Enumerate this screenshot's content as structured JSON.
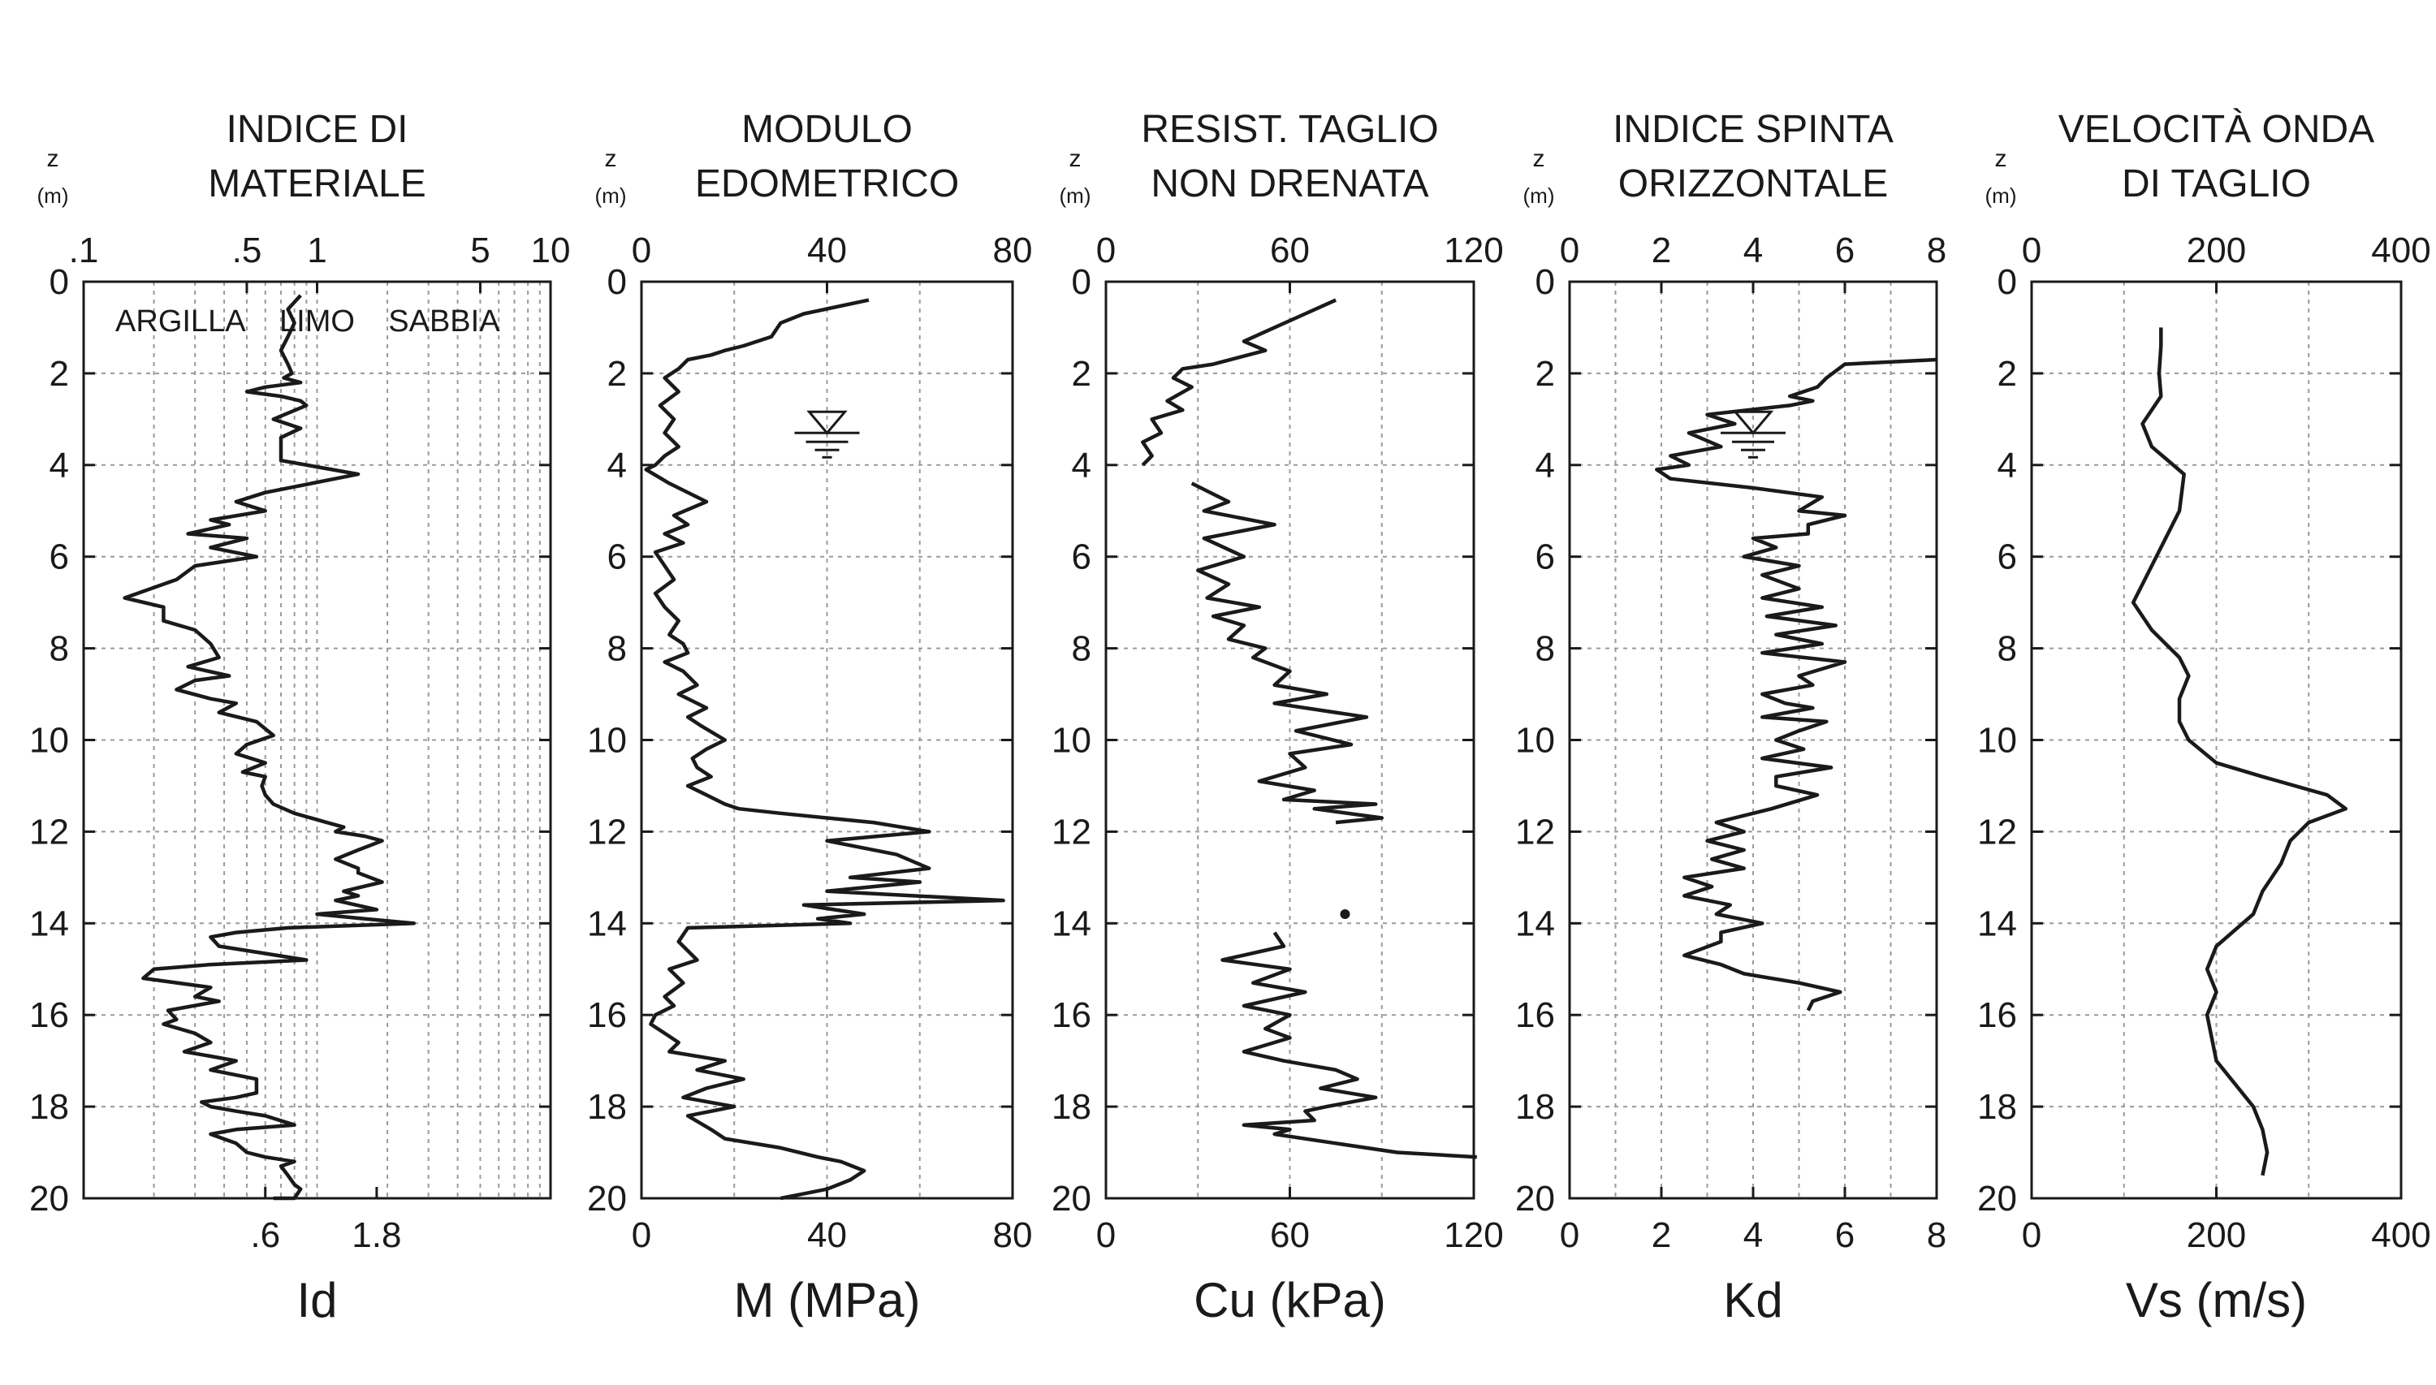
{
  "chart_data": [
    {
      "type": "line",
      "title": "INDICE DI\nMATERIALE",
      "xlabel": "Id",
      "ylabel": "z",
      "yunit": "(m)",
      "xscale": "log",
      "xlim": [
        0.1,
        10
      ],
      "ylim": [
        0,
        20
      ],
      "x_tick_labels_top": [
        ".1",
        ".5",
        "1",
        "5",
        "10"
      ],
      "x_tick_values_top": [
        0.1,
        0.5,
        1,
        5,
        10
      ],
      "x_tick_labels_bottom": [
        ".6",
        "1.8"
      ],
      "x_tick_values_bottom": [
        0.6,
        1.8
      ],
      "y_ticks": [
        0,
        2,
        4,
        6,
        8,
        10,
        12,
        14,
        16,
        18,
        20
      ],
      "zone_labels": [
        "ARGILLA",
        "LIMO",
        "SABBIA"
      ],
      "grid": true,
      "series": [
        {
          "x": [
            0.85,
            0.75,
            0.8,
            0.75,
            0.7,
            0.75,
            0.78,
            0.72,
            0.85,
            0.6,
            0.5,
            0.7,
            0.85,
            0.9,
            0.65,
            0.85,
            0.7,
            0.7,
            1.5,
            0.6,
            0.45,
            0.6,
            0.35,
            0.42,
            0.28,
            0.5,
            0.35,
            0.55,
            0.3,
            0.25,
            0.15,
            0.22,
            0.22,
            0.3,
            0.35,
            0.38,
            0.28,
            0.42,
            0.3,
            0.25,
            0.35,
            0.45,
            0.38,
            0.55,
            0.65,
            0.5,
            0.45,
            0.6,
            0.48,
            0.6,
            0.58,
            0.6,
            0.65,
            0.8,
            1.1,
            1.3,
            1.2,
            1.6,
            1.9,
            1.5,
            1.2,
            1.5,
            1.5,
            1.9,
            1.3,
            1.5,
            1.2,
            1.8,
            1.0,
            1.6,
            2.6,
            0.75,
            0.45,
            0.35,
            0.38,
            0.9,
            0.35,
            0.2,
            0.18,
            0.35,
            0.3,
            0.38,
            0.23,
            0.25,
            0.22,
            0.3,
            0.35,
            0.27,
            0.35,
            0.45,
            0.35,
            0.55,
            0.55,
            0.45,
            0.32,
            0.35,
            0.45,
            0.6,
            0.8,
            0.45,
            0.35,
            0.45,
            0.5,
            0.6,
            0.8,
            0.7,
            0.75,
            0.8,
            0.85,
            0.8,
            0.7,
            0.65
          ],
          "y": [
            0.3,
            0.6,
            0.9,
            1.2,
            1.5,
            1.8,
            2.0,
            2.1,
            2.2,
            2.3,
            2.4,
            2.5,
            2.6,
            2.7,
            3.0,
            3.2,
            3.4,
            3.9,
            4.2,
            4.6,
            4.8,
            5.0,
            5.2,
            5.3,
            5.5,
            5.6,
            5.8,
            6.0,
            6.2,
            6.5,
            6.9,
            7.1,
            7.4,
            7.6,
            7.9,
            8.2,
            8.4,
            8.6,
            8.7,
            8.9,
            9.1,
            9.2,
            9.4,
            9.6,
            9.9,
            10.1,
            10.3,
            10.5,
            10.7,
            10.8,
            11.0,
            11.2,
            11.4,
            11.6,
            11.8,
            11.9,
            12.0,
            12.1,
            12.2,
            12.4,
            12.6,
            12.8,
            12.9,
            13.1,
            13.3,
            13.4,
            13.5,
            13.7,
            13.8,
            13.9,
            14.0,
            14.1,
            14.2,
            14.3,
            14.5,
            14.8,
            14.9,
            15.0,
            15.2,
            15.4,
            15.6,
            15.7,
            15.9,
            16.1,
            16.2,
            16.4,
            16.6,
            16.8,
            16.9,
            17.0,
            17.2,
            17.4,
            17.7,
            17.8,
            17.9,
            18.0,
            18.1,
            18.2,
            18.4,
            18.5,
            18.6,
            18.8,
            19.0,
            19.1,
            19.2,
            19.3,
            19.5,
            19.7,
            19.8,
            20.0,
            20.1,
            20.2
          ]
        }
      ]
    },
    {
      "type": "line",
      "title": "MODULO\nEDOMETRICO",
      "xlabel": "M (MPa)",
      "ylabel": "z",
      "yunit": "(m)",
      "xlim": [
        0,
        80
      ],
      "ylim": [
        0,
        20
      ],
      "x_ticks": [
        0,
        40,
        80
      ],
      "y_ticks": [
        0,
        2,
        4,
        6,
        8,
        10,
        12,
        14,
        16,
        18,
        20
      ],
      "water_table_depth": 3.3,
      "water_table_x": 40,
      "grid": true,
      "series": [
        {
          "x": [
            49,
            35,
            30,
            28,
            22,
            18,
            15,
            10,
            8,
            5,
            8,
            4,
            7,
            5,
            8,
            5,
            3,
            1,
            6,
            14,
            7,
            10,
            5,
            9,
            3,
            5,
            7,
            3,
            5,
            8,
            6,
            9,
            10,
            5,
            9,
            12,
            8,
            14,
            10,
            13,
            18,
            14,
            11,
            12,
            15,
            10,
            14,
            18,
            21,
            30,
            40,
            50,
            62,
            40,
            55,
            62,
            45,
            60,
            40,
            78,
            35,
            48,
            38,
            45,
            10,
            8,
            12,
            6,
            9,
            5,
            7,
            3,
            2,
            5,
            8,
            6,
            18,
            12,
            22,
            14,
            9,
            20,
            10,
            15,
            18,
            30,
            38,
            43,
            48,
            45,
            40,
            35,
            30
          ],
          "y": [
            0.4,
            0.7,
            0.9,
            1.2,
            1.4,
            1.5,
            1.6,
            1.7,
            1.9,
            2.1,
            2.4,
            2.7,
            3.0,
            3.3,
            3.6,
            3.8,
            4.0,
            4.1,
            4.4,
            4.8,
            5.1,
            5.3,
            5.5,
            5.7,
            5.9,
            6.2,
            6.5,
            6.8,
            7.1,
            7.4,
            7.7,
            7.9,
            8.1,
            8.3,
            8.5,
            8.8,
            9.0,
            9.3,
            9.5,
            9.7,
            10.0,
            10.2,
            10.4,
            10.6,
            10.8,
            11.0,
            11.2,
            11.4,
            11.5,
            11.6,
            11.7,
            11.8,
            12.0,
            12.2,
            12.5,
            12.8,
            13.0,
            13.1,
            13.3,
            13.5,
            13.6,
            13.8,
            13.9,
            14.0,
            14.1,
            14.4,
            14.8,
            15.0,
            15.3,
            15.6,
            15.8,
            16.0,
            16.2,
            16.4,
            16.6,
            16.8,
            17.0,
            17.2,
            17.4,
            17.6,
            17.8,
            18.0,
            18.2,
            18.5,
            18.7,
            18.9,
            19.1,
            19.2,
            19.4,
            19.6,
            19.8,
            19.9,
            20.0
          ]
        }
      ]
    },
    {
      "type": "line",
      "title": "RESIST. TAGLIO\nNON DRENATA",
      "xlabel": "Cu (kPa)",
      "ylabel": "z",
      "yunit": "(m)",
      "xlim": [
        0,
        120
      ],
      "ylim": [
        0,
        20
      ],
      "x_ticks": [
        0,
        60,
        120
      ],
      "y_ticks": [
        0,
        2,
        4,
        6,
        8,
        10,
        12,
        14,
        16,
        18,
        20
      ],
      "grid": true,
      "series": [
        {
          "x": [
            75,
            65,
            55,
            45,
            52,
            35,
            25,
            22,
            28,
            20,
            25,
            15,
            18,
            12,
            15,
            12
          ],
          "y": [
            0.4,
            0.7,
            1.0,
            1.3,
            1.5,
            1.8,
            1.9,
            2.1,
            2.3,
            2.6,
            2.8,
            3.0,
            3.3,
            3.5,
            3.8,
            4.0
          ]
        },
        {
          "x": [
            28,
            40,
            32,
            55,
            32,
            45,
            30,
            40,
            33,
            50,
            35,
            45,
            40,
            52,
            48,
            60,
            55,
            72,
            55,
            85,
            62,
            80,
            60,
            65,
            50,
            68,
            58,
            88,
            68,
            90,
            75
          ],
          "y": [
            4.4,
            4.8,
            5.0,
            5.3,
            5.6,
            6.0,
            6.3,
            6.6,
            6.9,
            7.1,
            7.3,
            7.5,
            7.8,
            8.0,
            8.2,
            8.5,
            8.8,
            9.0,
            9.2,
            9.5,
            9.8,
            10.1,
            10.3,
            10.6,
            10.9,
            11.1,
            11.3,
            11.4,
            11.5,
            11.7,
            11.8
          ]
        },
        {
          "x": [
            55,
            58,
            38,
            60,
            48,
            65,
            45,
            60,
            52,
            60,
            45,
            58,
            75,
            82,
            70,
            88,
            72,
            65,
            68,
            45,
            60,
            55,
            75,
            95,
            121
          ],
          "y": [
            14.2,
            14.5,
            14.8,
            15.0,
            15.3,
            15.5,
            15.8,
            16.0,
            16.3,
            16.5,
            16.8,
            17.0,
            17.2,
            17.4,
            17.6,
            17.8,
            18.0,
            18.1,
            18.3,
            18.4,
            18.5,
            18.6,
            18.8,
            19.0,
            19.1
          ]
        },
        {
          "x": [
            78
          ],
          "y": [
            13.8
          ]
        }
      ]
    },
    {
      "type": "line",
      "title": "INDICE SPINTA\nORIZZONTALE",
      "xlabel": "Kd",
      "ylabel": "z",
      "yunit": "(m)",
      "xlim": [
        0,
        8
      ],
      "ylim": [
        0,
        20
      ],
      "x_ticks": [
        0,
        2,
        4,
        6,
        8
      ],
      "y_ticks": [
        0,
        2,
        4,
        6,
        8,
        10,
        12,
        14,
        16,
        18,
        20
      ],
      "water_table_depth": 3.3,
      "water_table_x": 4,
      "grid": true,
      "series": [
        {
          "x": [
            8,
            6,
            5.6,
            5.4,
            4.8,
            5.3,
            4.8,
            3,
            3.6,
            2.6,
            3.3,
            2.2,
            2.6,
            1.9,
            2.2,
            4,
            5.5,
            5,
            6,
            5.2,
            5.2,
            4,
            4.5,
            3.8,
            5,
            4.2,
            5,
            4.2,
            5.5,
            4.3,
            5.8,
            4.5,
            5.5,
            4.2,
            6,
            5,
            5.3,
            4.2,
            4.7,
            5.3,
            4.2,
            5.6,
            5,
            4.5,
            5.1,
            4.2,
            5.7,
            4.5,
            4.5,
            5.4,
            4.4,
            3.2,
            3.8,
            3,
            3.8,
            3.1,
            3.8,
            2.5,
            3.1,
            2.5,
            3.5,
            3.2,
            4.2,
            3.3,
            3.3,
            2.5,
            3.3,
            3.8,
            5,
            5.9,
            5.3,
            5.2
          ],
          "y": [
            1.7,
            1.8,
            2.1,
            2.3,
            2.5,
            2.6,
            2.7,
            2.9,
            3.1,
            3.3,
            3.6,
            3.8,
            4.0,
            4.1,
            4.3,
            4.5,
            4.7,
            5.0,
            5.1,
            5.3,
            5.5,
            5.6,
            5.8,
            6.0,
            6.2,
            6.4,
            6.7,
            6.9,
            7.1,
            7.3,
            7.5,
            7.7,
            7.9,
            8.1,
            8.3,
            8.6,
            8.8,
            9.0,
            9.2,
            9.3,
            9.5,
            9.6,
            9.8,
            10.0,
            10.2,
            10.4,
            10.6,
            10.8,
            11.0,
            11.2,
            11.5,
            11.8,
            12.0,
            12.2,
            12.4,
            12.6,
            12.8,
            13.0,
            13.2,
            13.4,
            13.6,
            13.8,
            14.0,
            14.2,
            14.4,
            14.7,
            14.9,
            15.1,
            15.3,
            15.5,
            15.7,
            15.9
          ]
        }
      ]
    },
    {
      "type": "line",
      "title": "VELOCITÀ ONDA\nDI TAGLIO",
      "xlabel": "Vs (m/s)",
      "ylabel": "z",
      "yunit": "(m)",
      "xlim": [
        0,
        400
      ],
      "ylim": [
        0,
        20
      ],
      "x_ticks": [
        0,
        200,
        400
      ],
      "y_ticks": [
        0,
        2,
        4,
        6,
        8,
        10,
        12,
        14,
        16,
        18,
        20
      ],
      "grid": true,
      "series": [
        {
          "x": [
            140,
            140,
            138,
            140,
            120,
            130,
            165,
            160,
            140,
            120,
            110,
            130,
            160,
            170,
            160,
            160,
            170,
            200,
            250,
            320,
            340,
            300,
            280,
            270,
            260,
            250,
            240,
            200,
            190,
            200,
            190,
            195,
            200,
            220,
            240,
            250,
            255,
            250
          ],
          "y": [
            1.0,
            1.4,
            2.0,
            2.5,
            3.1,
            3.6,
            4.2,
            5.0,
            5.8,
            6.6,
            7.0,
            7.6,
            8.2,
            8.6,
            9.1,
            9.6,
            10.0,
            10.5,
            10.8,
            11.2,
            11.5,
            11.8,
            12.2,
            12.7,
            13.0,
            13.3,
            13.8,
            14.5,
            15.0,
            15.5,
            16.0,
            16.5,
            17.0,
            17.5,
            18.0,
            18.5,
            19.0,
            19.5
          ]
        }
      ]
    }
  ]
}
